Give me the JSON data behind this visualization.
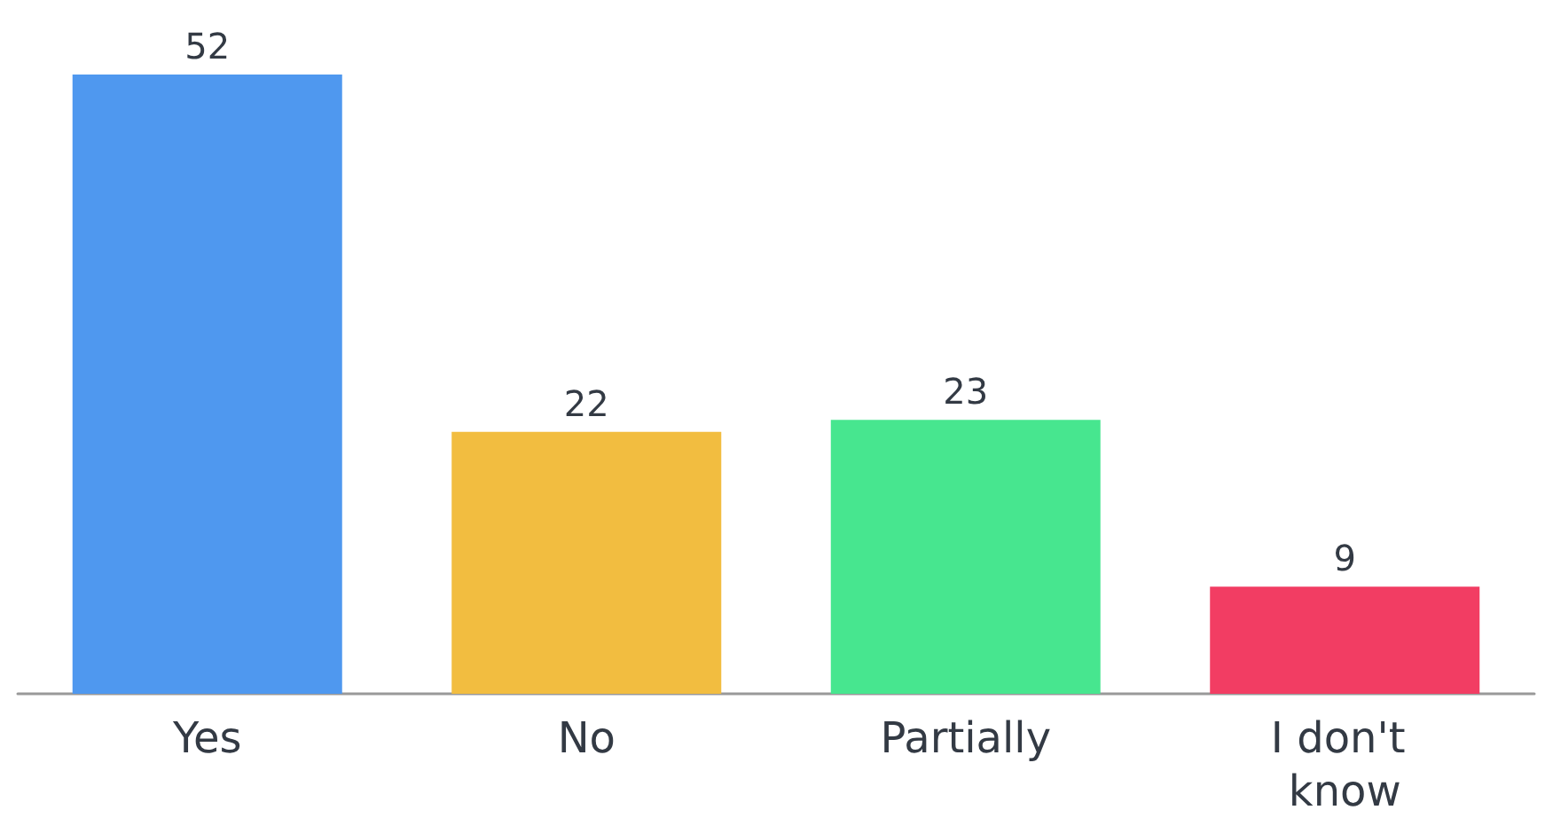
{
  "chart_data": {
    "type": "bar",
    "categories": [
      "Yes",
      "No",
      "Partially",
      "I don't know"
    ],
    "values": [
      52,
      22,
      23,
      9
    ],
    "colors": [
      "#4f98ef",
      "#f2bd40",
      "#47e68f",
      "#f23d63"
    ],
    "data_labels": true
  }
}
